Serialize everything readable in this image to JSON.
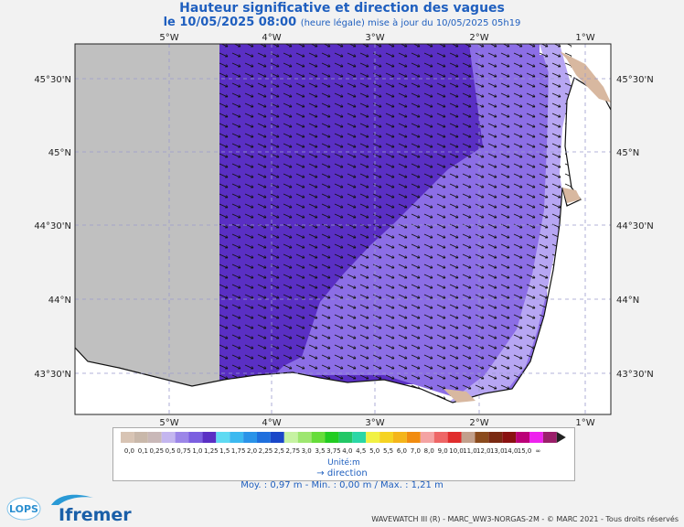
{
  "title": "Hauteur significative et direction des vagues",
  "date_line": "le 10/05/2025 08:00",
  "update_line": "(heure légale) mise à jour du 10/05/2025 05h19",
  "lon_labels": [
    "5°W",
    "4°W",
    "3°W",
    "2°W",
    "1°W"
  ],
  "lat_labels": [
    "45°30'N",
    "45°N",
    "44°30'N",
    "44°N",
    "43°30'N"
  ],
  "colors": {
    "title": "#1f5fbf",
    "land": "#d8b8a0",
    "no_data": "#c0c0c0",
    "class_1_0": "#5a2fc4",
    "class_0_75": "#8c6ee6",
    "class_0_5": "#b7a6f3"
  },
  "legend": {
    "colors": [
      "#d8c4b4",
      "#c9b8aa",
      "#c9b8b8",
      "#c4b6ef",
      "#9c86e8",
      "#7b5fe0",
      "#5a2fc4",
      "#5fdaf2",
      "#3cb9f0",
      "#2a93e8",
      "#1f6fdd",
      "#1a47c8",
      "#c6f2a2",
      "#9ee670",
      "#66dd3a",
      "#22cc22",
      "#22c766",
      "#2ad7a6",
      "#f1f144",
      "#f5d323",
      "#f4b51a",
      "#f18c10",
      "#f4a3a3",
      "#ee6666",
      "#e02d2d",
      "#c2a08c",
      "#8b4b1d",
      "#7a2a12",
      "#8a1111",
      "#bb0077",
      "#ee22ee",
      "#9a1f6a"
    ],
    "labels": [
      "0,0",
      "0,1",
      "0,25",
      "0,5",
      "0,75",
      "1,0",
      "1,25",
      "1,5",
      "1,75",
      "2,0",
      "2,25",
      "2,5",
      "2,75",
      "3,0",
      "3,5",
      "3,75",
      "4,0",
      "4,5",
      "5,0",
      "5,5",
      "6,0",
      "7,0",
      "8,0",
      "9,0",
      "10,0",
      "11,0",
      "12,0",
      "13,0",
      "14,0",
      "15,0",
      "∞"
    ],
    "unit": "Unité:m",
    "direction_label": "direction"
  },
  "stats": "Moy. : 0,97 m   -   Min. : 0,00 m / Max. : 1,21 m",
  "footer": "WAVEWATCH III (R) - MARC_WW3-NORGAS-2M - © MARC 2021 - Tous droits réservés",
  "logos": {
    "lops": "LOPS",
    "ifremer": "Ifremer"
  }
}
